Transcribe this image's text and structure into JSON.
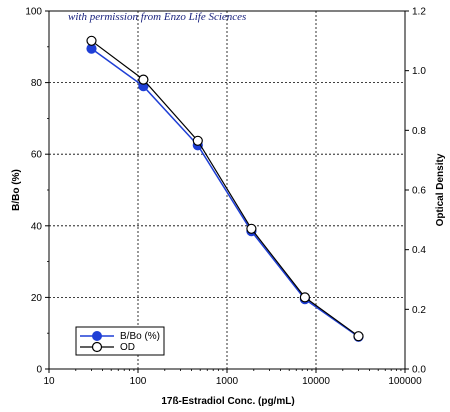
{
  "chart_data": {
    "type": "line",
    "x_scale": "log",
    "xlabel": "17ß-Estradiol Conc. (pg/mL)",
    "ylabel_left": "B/Bo (%)",
    "ylabel_right": "Optical Density",
    "xlim": [
      10,
      100000
    ],
    "ylim_left": [
      0,
      100
    ],
    "ylim_right": [
      0,
      1.2
    ],
    "x_tick_labels": [
      "10",
      "100",
      "1000",
      "10000",
      "100000"
    ],
    "y_left_tick_labels": [
      "0",
      "20",
      "40",
      "60",
      "80",
      "100"
    ],
    "y_right_tick_labels": [
      "0.0",
      "0.2",
      "0.4",
      "0.6",
      "0.8",
      "1.0",
      "1.2"
    ],
    "grid": true,
    "legend_position": "bottom-left",
    "annotation": "with permission from Enzo Life Sciences",
    "series": [
      {
        "name": "B/Bo (%)",
        "axis": "left",
        "color": "#1f3fd6",
        "marker": "filled-circle",
        "x": [
          30,
          115,
          470,
          1880,
          7500,
          30000
        ],
        "y": [
          89.5,
          79,
          62.5,
          38.5,
          19.5,
          9
        ]
      },
      {
        "name": "OD",
        "axis": "right",
        "color": "#000000",
        "marker": "open-circle",
        "x": [
          30,
          115,
          470,
          1880,
          7500,
          30000
        ],
        "y": [
          1.1,
          0.97,
          0.765,
          0.47,
          0.24,
          0.11
        ]
      }
    ]
  }
}
